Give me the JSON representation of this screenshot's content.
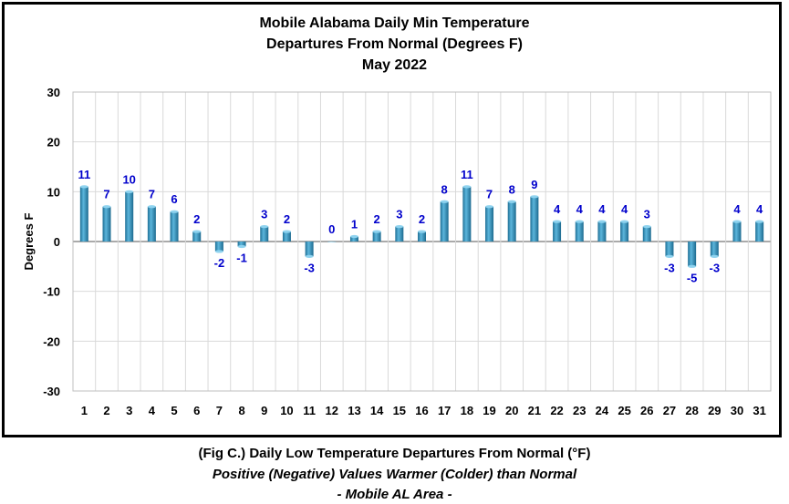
{
  "chart_data": {
    "type": "bar",
    "title": [
      "Mobile Alabama Daily Min Temperature",
      "Departures From Normal (Degrees F)",
      "May 2022"
    ],
    "ylabel": "Degrees F",
    "xlabel": "",
    "ylim": [
      -30,
      30
    ],
    "yticks": [
      30,
      20,
      10,
      0,
      -10,
      -20,
      -30
    ],
    "grid": true,
    "categories": [
      "1",
      "2",
      "3",
      "4",
      "5",
      "6",
      "7",
      "8",
      "9",
      "10",
      "11",
      "12",
      "13",
      "14",
      "15",
      "16",
      "17",
      "18",
      "19",
      "20",
      "21",
      "22",
      "23",
      "24",
      "25",
      "26",
      "27",
      "28",
      "29",
      "30",
      "31"
    ],
    "values": [
      11,
      7,
      10,
      7,
      6,
      2,
      -2,
      -1,
      3,
      2,
      -3,
      0,
      1,
      2,
      3,
      2,
      8,
      11,
      7,
      8,
      9,
      4,
      4,
      4,
      4,
      3,
      -3,
      -5,
      -3,
      4,
      4
    ],
    "bar_color": "#3a9ac4",
    "data_label_color": "#0000cc"
  },
  "caption": {
    "line1": "(Fig C.) Daily Low Temperature Departures From Normal (°F)",
    "line2": "Positive (Negative) Values Warmer (Colder) than Normal",
    "line3": "- Mobile AL Area -"
  }
}
